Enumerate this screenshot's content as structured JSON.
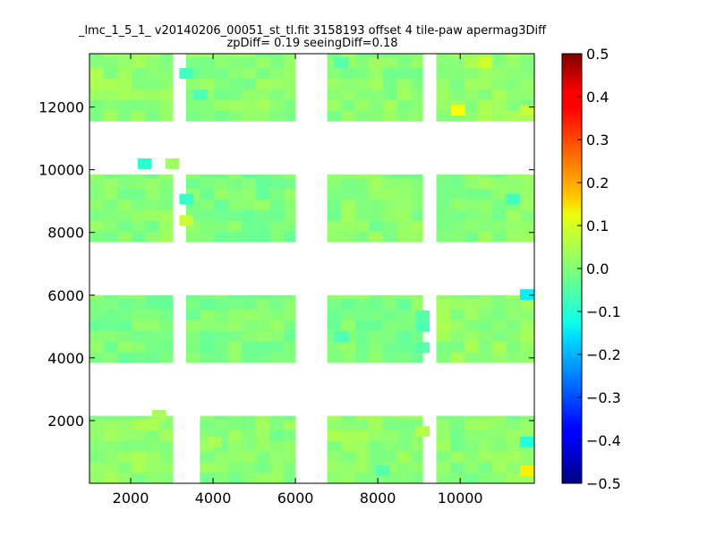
{
  "chart_data": {
    "type": "heatmap",
    "title": "_lmc_1_5_1_ v20140206_00051_st_tl.fit 3158193 offset 4 tile-paw apermag3Diff",
    "subtitle": "zpDiff= 0.19 seeingDiff=0.18",
    "xlabel": "",
    "ylabel": "",
    "xlim": [
      1000,
      11800
    ],
    "ylim": [
      0,
      13700
    ],
    "x_ticks": [
      2000,
      4000,
      6000,
      8000,
      10000
    ],
    "x_tick_labels": [
      "2000",
      "4000",
      "6000",
      "8000",
      "10000"
    ],
    "y_ticks": [
      2000,
      4000,
      6000,
      8000,
      10000,
      12000
    ],
    "y_tick_labels": [
      "2000",
      "4000",
      "6000",
      "8000",
      "10000",
      "12000"
    ],
    "colorbar": {
      "colormap": "jet",
      "range": [
        -0.5,
        0.5
      ],
      "ticks": [
        0.5,
        0.4,
        0.3,
        0.2,
        0.1,
        0.0,
        -0.1,
        -0.2,
        -0.3,
        -0.4,
        -0.5
      ],
      "tick_labels": [
        "0.5",
        "0.4",
        "0.3",
        "0.2",
        "0.1",
        "0.0",
        "−0.1",
        "−0.2",
        "−0.3",
        "−0.4",
        "−0.5"
      ]
    },
    "cell_size": 340,
    "typical_value": 0.0,
    "chips": [
      {
        "x0": 1000,
        "x1": 3020,
        "y0": 0,
        "y1": 2150,
        "value": 0.02
      },
      {
        "x0": 3680,
        "x1": 6000,
        "y0": 0,
        "y1": 2150,
        "value": 0.01
      },
      {
        "x0": 6770,
        "x1": 9090,
        "y0": 0,
        "y1": 2150,
        "value": 0.02
      },
      {
        "x0": 9420,
        "x1": 11800,
        "y0": 0,
        "y1": 2150,
        "value": 0.01
      },
      {
        "x0": 1000,
        "x1": 3020,
        "y0": 3850,
        "y1": 6000,
        "value": 0.0
      },
      {
        "x0": 3340,
        "x1": 6000,
        "y0": 3850,
        "y1": 6000,
        "value": 0.0
      },
      {
        "x0": 6770,
        "x1": 9090,
        "y0": 3850,
        "y1": 6000,
        "value": 0.0
      },
      {
        "x0": 9420,
        "x1": 11800,
        "y0": 3850,
        "y1": 6000,
        "value": 0.02
      },
      {
        "x0": 1000,
        "x1": 3020,
        "y0": 7700,
        "y1": 9850,
        "value": 0.01
      },
      {
        "x0": 3340,
        "x1": 6000,
        "y0": 7700,
        "y1": 9850,
        "value": 0.0
      },
      {
        "x0": 6770,
        "x1": 9090,
        "y0": 7700,
        "y1": 9850,
        "value": 0.01
      },
      {
        "x0": 9420,
        "x1": 11800,
        "y0": 7700,
        "y1": 9850,
        "value": 0.01
      },
      {
        "x0": 1000,
        "x1": 3020,
        "y0": 11550,
        "y1": 13700,
        "value": 0.02
      },
      {
        "x0": 3340,
        "x1": 6000,
        "y0": 11550,
        "y1": 13700,
        "value": 0.01
      },
      {
        "x0": 6770,
        "x1": 9090,
        "y0": 11550,
        "y1": 13700,
        "value": 0.01
      },
      {
        "x0": 9420,
        "x1": 11800,
        "y0": 11550,
        "y1": 13700,
        "value": 0.02
      }
    ],
    "isolated_cells": [
      {
        "x": 2170,
        "y": 10020,
        "value": -0.08
      },
      {
        "x": 2840,
        "y": 10020,
        "value": 0.03
      }
    ],
    "highlight_cells": [
      {
        "x": 3180,
        "y": 12900,
        "value": -0.06
      },
      {
        "x": 3520,
        "y": 12220,
        "value": -0.05
      },
      {
        "x": 6940,
        "y": 13240,
        "value": -0.04
      },
      {
        "x": 10440,
        "y": 13240,
        "value": 0.08
      },
      {
        "x": 9780,
        "y": 11730,
        "value": 0.12
      },
      {
        "x": 11450,
        "y": 11730,
        "value": 0.07
      },
      {
        "x": 3180,
        "y": 8890,
        "value": -0.07
      },
      {
        "x": 3180,
        "y": 8210,
        "value": 0.07
      },
      {
        "x": 11110,
        "y": 8890,
        "value": -0.06
      },
      {
        "x": 11450,
        "y": 5850,
        "value": -0.14
      },
      {
        "x": 8920,
        "y": 5170,
        "value": -0.04
      },
      {
        "x": 8920,
        "y": 4830,
        "value": -0.05
      },
      {
        "x": 6940,
        "y": 4490,
        "value": -0.05
      },
      {
        "x": 8920,
        "y": 4160,
        "value": -0.04
      },
      {
        "x": 11450,
        "y": 1150,
        "value": -0.09
      },
      {
        "x": 11450,
        "y": 230,
        "value": 0.14
      },
      {
        "x": 2520,
        "y": 2000,
        "value": 0.04
      },
      {
        "x": 3860,
        "y": 1150,
        "value": 0.04
      },
      {
        "x": 7950,
        "y": 230,
        "value": -0.04
      },
      {
        "x": 8920,
        "y": 1490,
        "value": 0.05
      }
    ]
  }
}
